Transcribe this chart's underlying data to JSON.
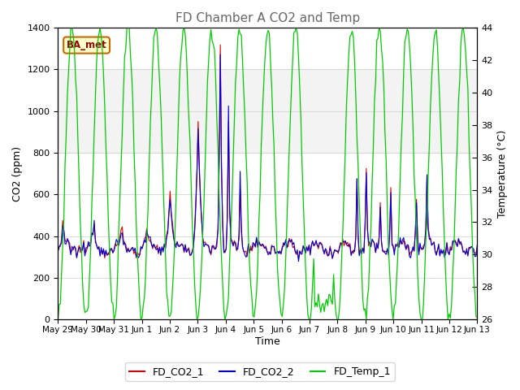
{
  "title": "FD Chamber A CO2 and Temp",
  "xlabel": "Time",
  "ylabel_left": "CO2 (ppm)",
  "ylabel_right": "Temperature (°C)",
  "ylim_left": [
    0,
    1400
  ],
  "ylim_right": [
    26,
    44
  ],
  "yticks_left": [
    0,
    200,
    400,
    600,
    800,
    1000,
    1200,
    1400
  ],
  "yticks_right": [
    26,
    28,
    30,
    32,
    34,
    36,
    38,
    40,
    42,
    44
  ],
  "xticklabels": [
    "May 29",
    "May 30",
    "May 31",
    "Jun 1",
    "Jun 2",
    "Jun 3",
    "Jun 4",
    "Jun 5",
    "Jun 6",
    "Jun 7",
    "Jun 8",
    "Jun 9",
    "Jun 10",
    "Jun 11",
    "Jun 12",
    "Jun 13"
  ],
  "color_co2_1": "#dd0000",
  "color_co2_2": "#0000dd",
  "color_temp": "#00cc00",
  "legend_label_1": "FD_CO2_1",
  "legend_label_2": "FD_CO2_2",
  "legend_label_3": "FD_Temp_1",
  "annotation_text": "BA_met",
  "shading_lower": 800,
  "shading_upper": 1200,
  "background_color": "#ffffff",
  "title_color": "#666666",
  "n_days": 15,
  "hours_per_day": 24
}
